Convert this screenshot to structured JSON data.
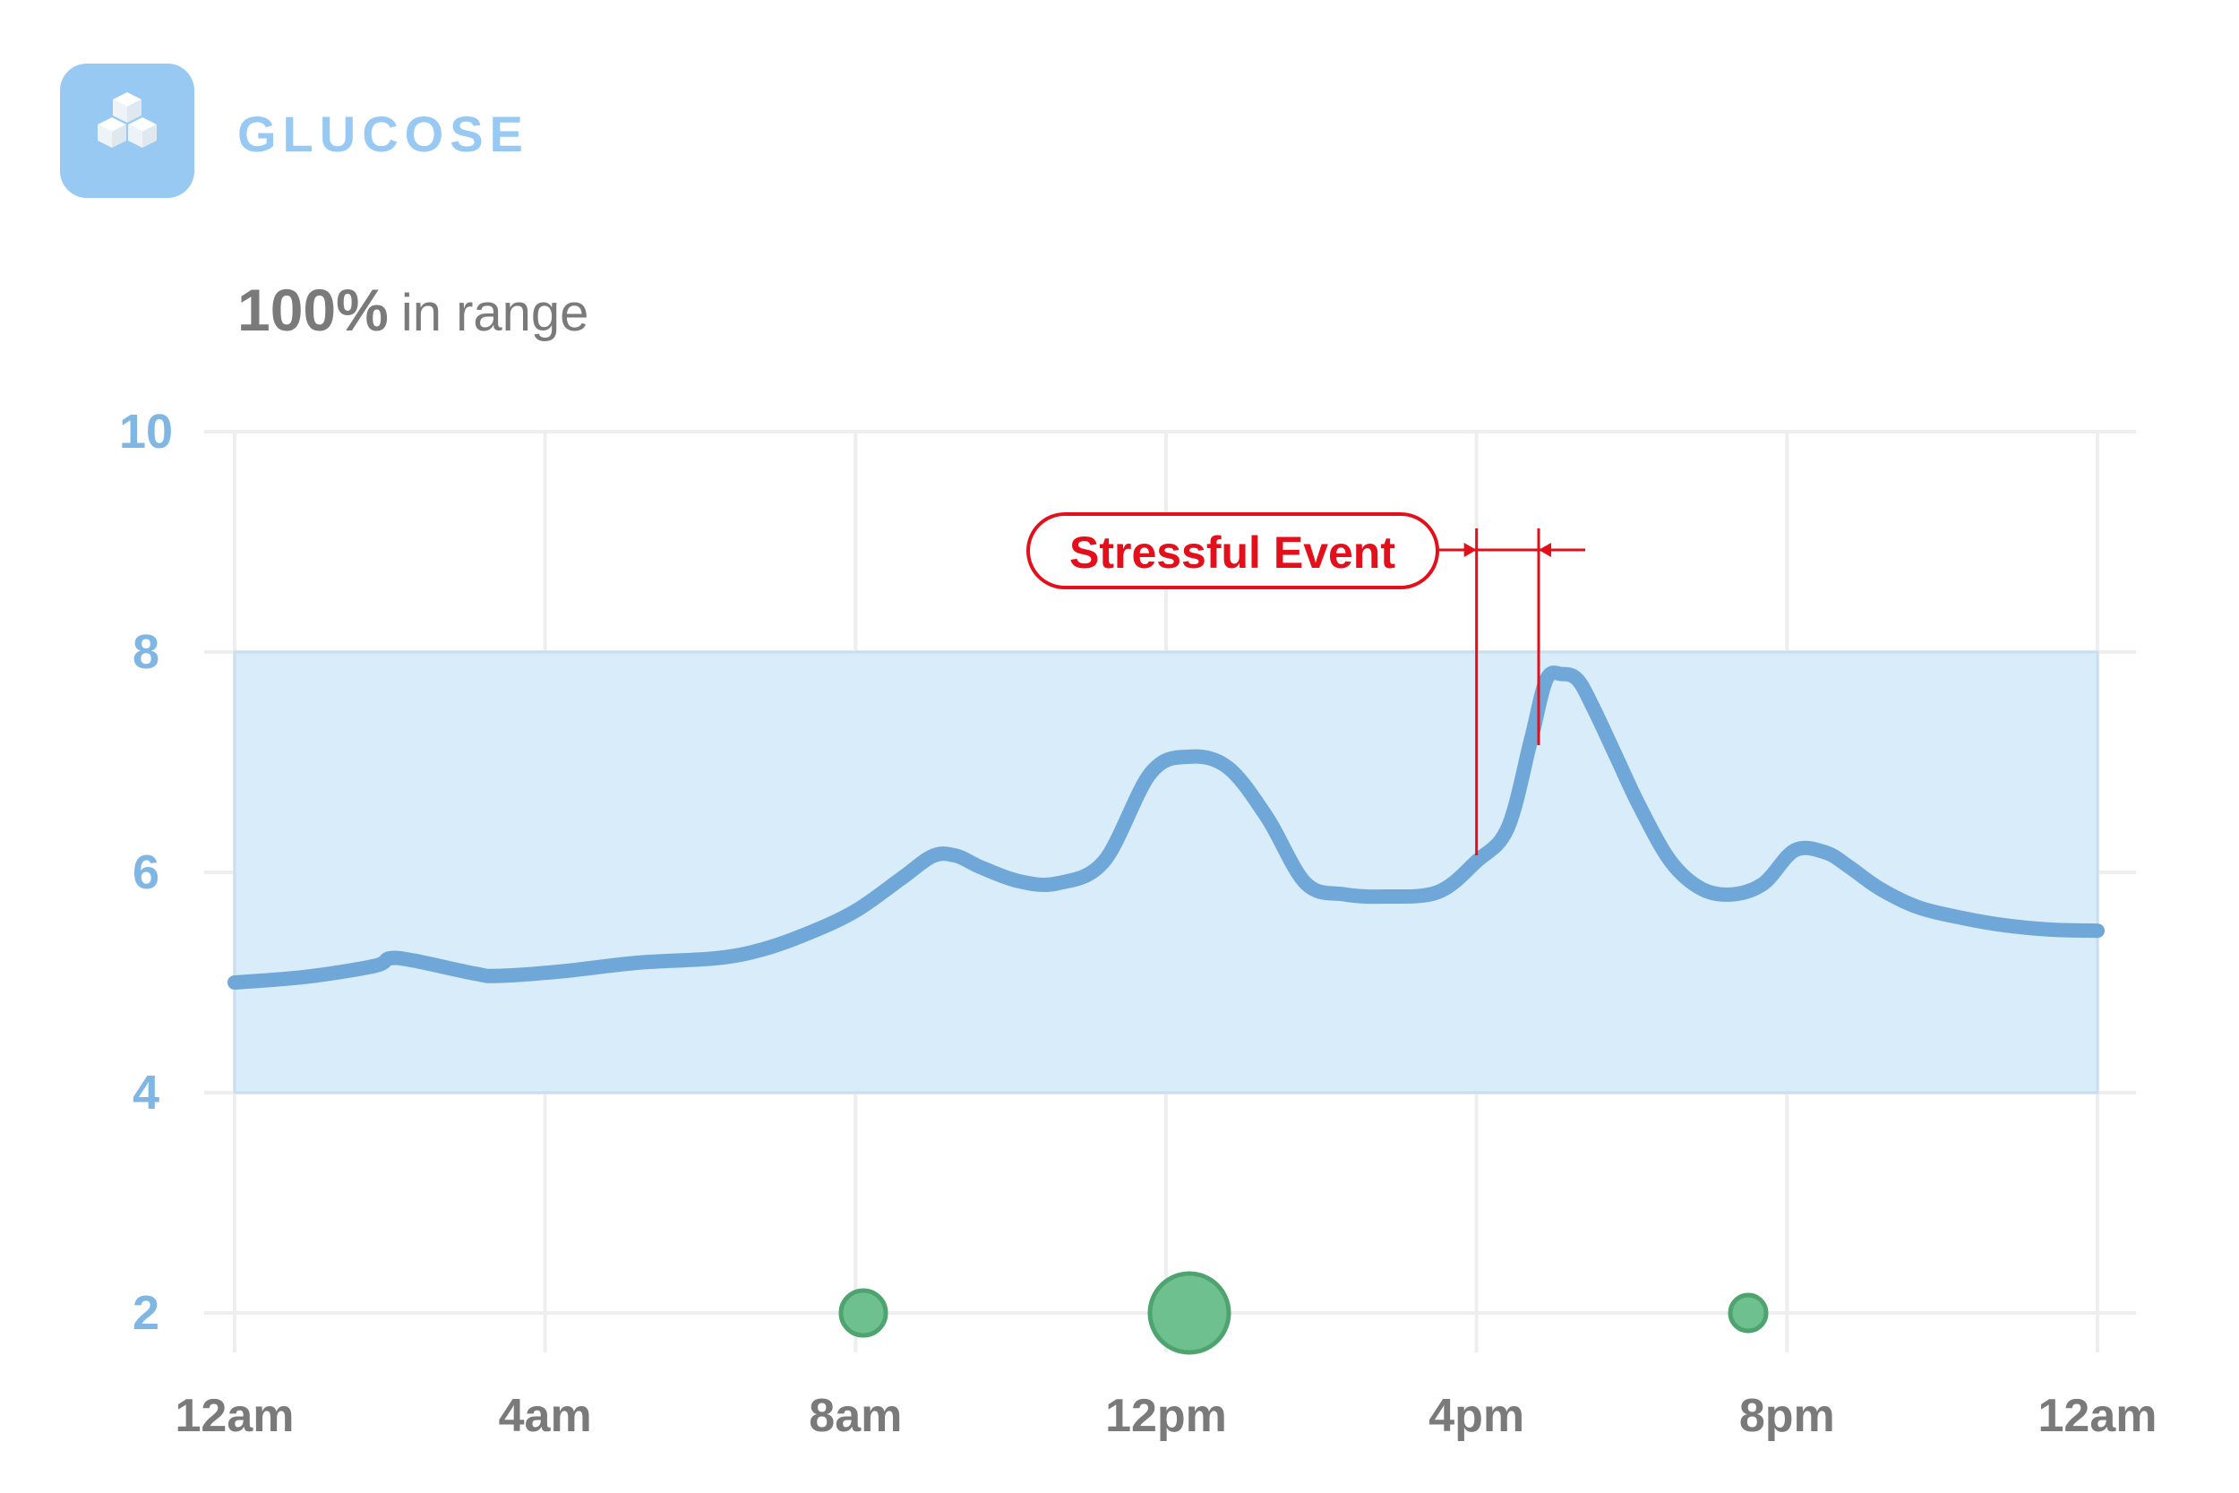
{
  "header": {
    "title": "GLUCOSE",
    "icon": "sugar-cubes-icon"
  },
  "summary": {
    "value": "100%",
    "label": "in range"
  },
  "colors": {
    "icon_background": "#97c9f2",
    "axis_label": "#7fb6e3",
    "tick_label": "#7a7a7a",
    "grid": "#eeeeee",
    "range_fill": "#d8ecf9",
    "line": "#6fa7d9",
    "event": "#e3101b",
    "marker": "#6fc08f",
    "marker_stroke": "#4ea46f"
  },
  "chart_data": {
    "type": "line",
    "xlabel": "",
    "ylabel": "",
    "x_unit": "hours since midnight",
    "xlim": [
      0,
      24
    ],
    "ylim": [
      2,
      10
    ],
    "x_ticks": [
      0,
      4,
      8,
      12,
      16,
      20,
      24
    ],
    "x_tick_labels": [
      "12am",
      "4am",
      "8am",
      "12pm",
      "4pm",
      "8pm",
      "12am"
    ],
    "y_ticks": [
      2,
      4,
      6,
      8,
      10
    ],
    "y_tick_labels": [
      "2",
      "4",
      "6",
      "8",
      "10"
    ],
    "grid": true,
    "target_range": [
      4,
      8
    ],
    "series": [
      {
        "name": "",
        "x": [
          0,
          0.9,
          1.8,
          2.0,
          2.3,
          3.1,
          3.4,
          4.2,
          5.2,
          6.2,
          6.8,
          7.4,
          8.0,
          8.6,
          9.0,
          9.3,
          9.6,
          10.1,
          10.6,
          11.2,
          11.8,
          12.3,
          12.8,
          13.3,
          13.8,
          14.3,
          14.8,
          15.5,
          16.0,
          16.4,
          16.7,
          16.9,
          17.1,
          17.3,
          17.5,
          17.8,
          18.1,
          18.5,
          18.9,
          19.3,
          19.7,
          20.1,
          20.5,
          20.8,
          21.2,
          21.7,
          22.3,
          22.8,
          23.4,
          24.0
        ],
        "y": [
          5.0,
          5.05,
          5.15,
          5.22,
          5.2,
          5.08,
          5.06,
          5.1,
          5.18,
          5.22,
          5.3,
          5.45,
          5.65,
          5.95,
          6.15,
          6.15,
          6.05,
          5.92,
          5.9,
          6.1,
          6.9,
          7.05,
          6.95,
          6.5,
          5.9,
          5.8,
          5.78,
          5.82,
          6.1,
          6.4,
          7.2,
          7.75,
          7.8,
          7.75,
          7.5,
          7.05,
          6.6,
          6.1,
          5.85,
          5.8,
          5.9,
          6.2,
          6.18,
          6.05,
          5.85,
          5.68,
          5.58,
          5.52,
          5.48,
          5.47
        ]
      }
    ],
    "annotations": [
      {
        "text": "Stressful Event",
        "start_x": 16.0,
        "end_x": 16.8
      }
    ],
    "markers": [
      {
        "x": 8.1,
        "y": 2,
        "size": "small"
      },
      {
        "x": 12.3,
        "y": 2,
        "size": "large"
      },
      {
        "x": 19.5,
        "y": 2,
        "size": "small"
      }
    ]
  }
}
